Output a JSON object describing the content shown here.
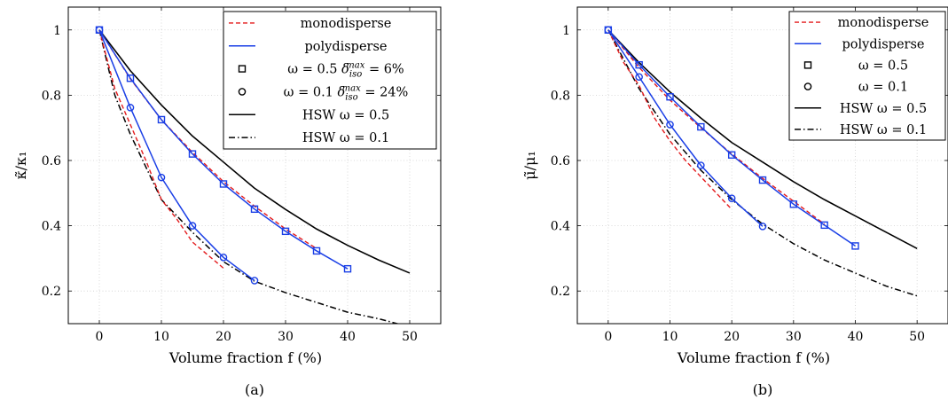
{
  "panels": [
    {
      "caption": "(a)",
      "chart_data": {
        "type": "line",
        "xlabel": "Volume fraction f (%)",
        "ylabel": "κ̃/κ₁",
        "xlim": [
          -5,
          55
        ],
        "ylim": [
          0.1,
          1.07
        ],
        "x_ticks": [
          0,
          10,
          20,
          30,
          40,
          50
        ],
        "y_ticks": [
          0.2,
          0.4,
          0.6,
          0.8,
          1
        ],
        "x_tick_labels": [
          "0",
          "10",
          "20",
          "30",
          "40",
          "50"
        ],
        "y_tick_labels": [
          "0.2",
          "0.4",
          "0.6",
          "0.8",
          "1"
        ],
        "grid": true,
        "legend_position": "top-right",
        "legend": [
          {
            "label": "monodisperse",
            "style": "red-dashed"
          },
          {
            "label": "polydisperse",
            "style": "blue-solid"
          },
          {
            "label": "ω = 0.5  δ_iso^max = 6%",
            "style": "square-marker"
          },
          {
            "label": "ω = 0.1  δ_iso^max = 24%",
            "style": "circle-marker"
          },
          {
            "label": "HSW ω = 0.5",
            "style": "black-solid"
          },
          {
            "label": "HSW ω = 0.1",
            "style": "black-dashdot"
          }
        ],
        "series": [
          {
            "name": "HSW ω = 0.5",
            "style": "black-solid",
            "x": [
              0,
              5,
              10,
              15,
              20,
              25,
              30,
              35,
              40,
              45,
              50
            ],
            "y": [
              1.0,
              0.875,
              0.77,
              0.675,
              0.595,
              0.515,
              0.45,
              0.39,
              0.34,
              0.295,
              0.255
            ]
          },
          {
            "name": "HSW ω = 0.1",
            "style": "black-dashdot",
            "x": [
              0,
              2.5,
              5,
              7.5,
              10,
              15,
              20,
              25,
              30,
              35,
              40,
              45,
              50
            ],
            "y": [
              1.0,
              0.8,
              0.68,
              0.58,
              0.48,
              0.38,
              0.29,
              0.23,
              0.195,
              0.165,
              0.135,
              0.115,
              0.09
            ]
          },
          {
            "name": "monodisperse ω = 0.5",
            "style": "red-dashed",
            "x": [
              0,
              5,
              10,
              15,
              20,
              25,
              30,
              35
            ],
            "y": [
              1.0,
              0.85,
              0.725,
              0.625,
              0.535,
              0.46,
              0.39,
              0.33
            ]
          },
          {
            "name": "monodisperse ω = 0.1",
            "style": "red-dashed",
            "x": [
              0,
              2.5,
              5,
              7.5,
              10,
              12.5,
              15,
              17.5,
              20
            ],
            "y": [
              1.0,
              0.82,
              0.71,
              0.6,
              0.48,
              0.42,
              0.35,
              0.31,
              0.27
            ]
          },
          {
            "name": "polydisperse ω = 0.5",
            "style": "blue-solid",
            "marker": "square",
            "x": [
              0,
              5,
              10,
              15,
              20,
              25,
              30,
              35,
              40
            ],
            "y": [
              1.0,
              0.852,
              0.725,
              0.62,
              0.528,
              0.451,
              0.383,
              0.323,
              0.268
            ]
          },
          {
            "name": "polydisperse ω = 0.1",
            "style": "blue-solid",
            "marker": "circle",
            "x": [
              0,
              5,
              10,
              15,
              20,
              25
            ],
            "y": [
              1.0,
              0.762,
              0.548,
              0.4,
              0.303,
              0.232
            ]
          }
        ]
      }
    },
    {
      "caption": "(b)",
      "chart_data": {
        "type": "line",
        "xlabel": "Volume fraction f (%)",
        "ylabel": "μ̃/μ₁",
        "xlim": [
          -5,
          55
        ],
        "ylim": [
          0.1,
          1.07
        ],
        "x_ticks": [
          0,
          10,
          20,
          30,
          40,
          50
        ],
        "y_ticks": [
          0.2,
          0.4,
          0.6,
          0.8,
          1
        ],
        "x_tick_labels": [
          "0",
          "10",
          "20",
          "30",
          "40",
          "50"
        ],
        "y_tick_labels": [
          "0.2",
          "0.4",
          "0.6",
          "0.8",
          "1"
        ],
        "grid": true,
        "legend_position": "top-right",
        "legend": [
          {
            "label": "monodisperse",
            "style": "red-dashed"
          },
          {
            "label": "polydisperse",
            "style": "blue-solid"
          },
          {
            "label": "ω = 0.5",
            "style": "square-marker"
          },
          {
            "label": "ω = 0.1",
            "style": "circle-marker"
          },
          {
            "label": "HSW ω = 0.5",
            "style": "black-solid"
          },
          {
            "label": "HSW ω = 0.1",
            "style": "black-dashdot"
          }
        ],
        "series": [
          {
            "name": "HSW ω = 0.5",
            "style": "black-solid",
            "x": [
              0,
              5,
              10,
              15,
              20,
              25,
              30,
              35,
              40,
              45,
              50
            ],
            "y": [
              1.0,
              0.9,
              0.81,
              0.73,
              0.655,
              0.595,
              0.535,
              0.48,
              0.43,
              0.38,
              0.33
            ]
          },
          {
            "name": "HSW ω = 0.1",
            "style": "black-dashdot",
            "x": [
              0,
              5,
              10,
              15,
              20,
              25,
              30,
              35,
              40,
              45,
              50
            ],
            "y": [
              1.0,
              0.82,
              0.68,
              0.57,
              0.48,
              0.405,
              0.345,
              0.295,
              0.255,
              0.215,
              0.185
            ]
          },
          {
            "name": "monodisperse ω = 0.5",
            "style": "red-dashed",
            "x": [
              0,
              5,
              10,
              15,
              20,
              25,
              30,
              35
            ],
            "y": [
              1.0,
              0.885,
              0.785,
              0.7,
              0.62,
              0.545,
              0.475,
              0.405
            ]
          },
          {
            "name": "monodisperse ω = 0.1",
            "style": "red-dashed",
            "x": [
              0,
              2.5,
              5,
              7.5,
              10,
              12.5,
              15,
              17.5,
              20
            ],
            "y": [
              1.0,
              0.9,
              0.83,
              0.73,
              0.66,
              0.6,
              0.55,
              0.5,
              0.45
            ]
          },
          {
            "name": "polydisperse ω = 0.5",
            "style": "blue-solid",
            "marker": "square",
            "x": [
              0,
              5,
              10,
              15,
              20,
              25,
              30,
              35,
              40
            ],
            "y": [
              1.0,
              0.893,
              0.795,
              0.703,
              0.617,
              0.54,
              0.466,
              0.402,
              0.338
            ]
          },
          {
            "name": "polydisperse ω = 0.1",
            "style": "blue-solid",
            "marker": "circle",
            "x": [
              0,
              5,
              10,
              15,
              20,
              25
            ],
            "y": [
              1.0,
              0.856,
              0.71,
              0.585,
              0.484,
              0.398
            ]
          }
        ]
      }
    }
  ]
}
